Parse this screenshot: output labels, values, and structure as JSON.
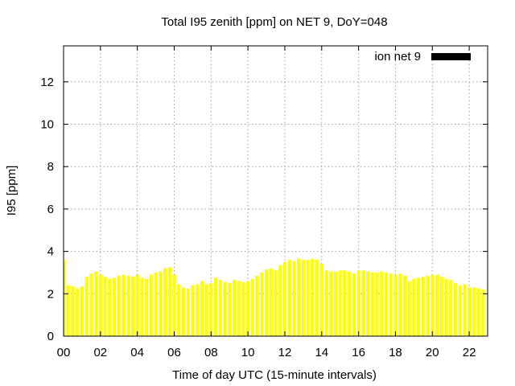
{
  "chart_data": {
    "type": "bar",
    "title": "Total I95 zenith [ppm] on NET 9, DoY=048",
    "xlabel": "Time of day UTC (15-minute intervals)",
    "ylabel": "I95 [ppm]",
    "xlim": [
      0,
      23
    ],
    "ylim": [
      0,
      13.7
    ],
    "x_ticks": [
      "00",
      "02",
      "04",
      "06",
      "08",
      "10",
      "12",
      "14",
      "16",
      "18",
      "20",
      "22"
    ],
    "x_tick_values": [
      0,
      2,
      4,
      6,
      8,
      10,
      12,
      14,
      16,
      18,
      20,
      22
    ],
    "y_ticks": [
      "0",
      "2",
      "4",
      "6",
      "8",
      "10",
      "12"
    ],
    "y_tick_values": [
      0,
      2,
      4,
      6,
      8,
      10,
      12
    ],
    "grid": true,
    "legend_position": "top-right",
    "bar_color": "#ffff00",
    "legend_swatch_color": "#000000",
    "bar_interval_hours": 0.25,
    "series": [
      {
        "name": "ion net 9",
        "values": [
          3.6,
          2.4,
          2.35,
          2.25,
          2.35,
          2.8,
          2.95,
          3.05,
          2.9,
          2.8,
          2.7,
          2.75,
          2.85,
          2.9,
          2.85,
          2.8,
          2.9,
          2.75,
          2.7,
          2.9,
          3.0,
          3.05,
          3.2,
          3.25,
          2.9,
          2.45,
          2.3,
          2.25,
          2.4,
          2.45,
          2.6,
          2.45,
          2.5,
          2.75,
          2.65,
          2.55,
          2.5,
          2.65,
          2.6,
          2.55,
          2.6,
          2.7,
          2.85,
          3.0,
          3.15,
          3.2,
          3.1,
          3.35,
          3.5,
          3.6,
          3.55,
          3.65,
          3.6,
          3.6,
          3.65,
          3.6,
          3.4,
          3.1,
          3.05,
          3.05,
          3.1,
          3.1,
          3.05,
          2.95,
          3.1,
          3.1,
          3.05,
          3.0,
          3.0,
          3.05,
          3.0,
          2.95,
          2.9,
          2.95,
          2.85,
          2.6,
          2.7,
          2.75,
          2.8,
          2.85,
          2.9,
          2.9,
          2.8,
          2.7,
          2.65,
          2.5,
          2.4,
          2.45,
          2.3,
          2.3,
          2.25,
          2.2
        ]
      }
    ]
  }
}
